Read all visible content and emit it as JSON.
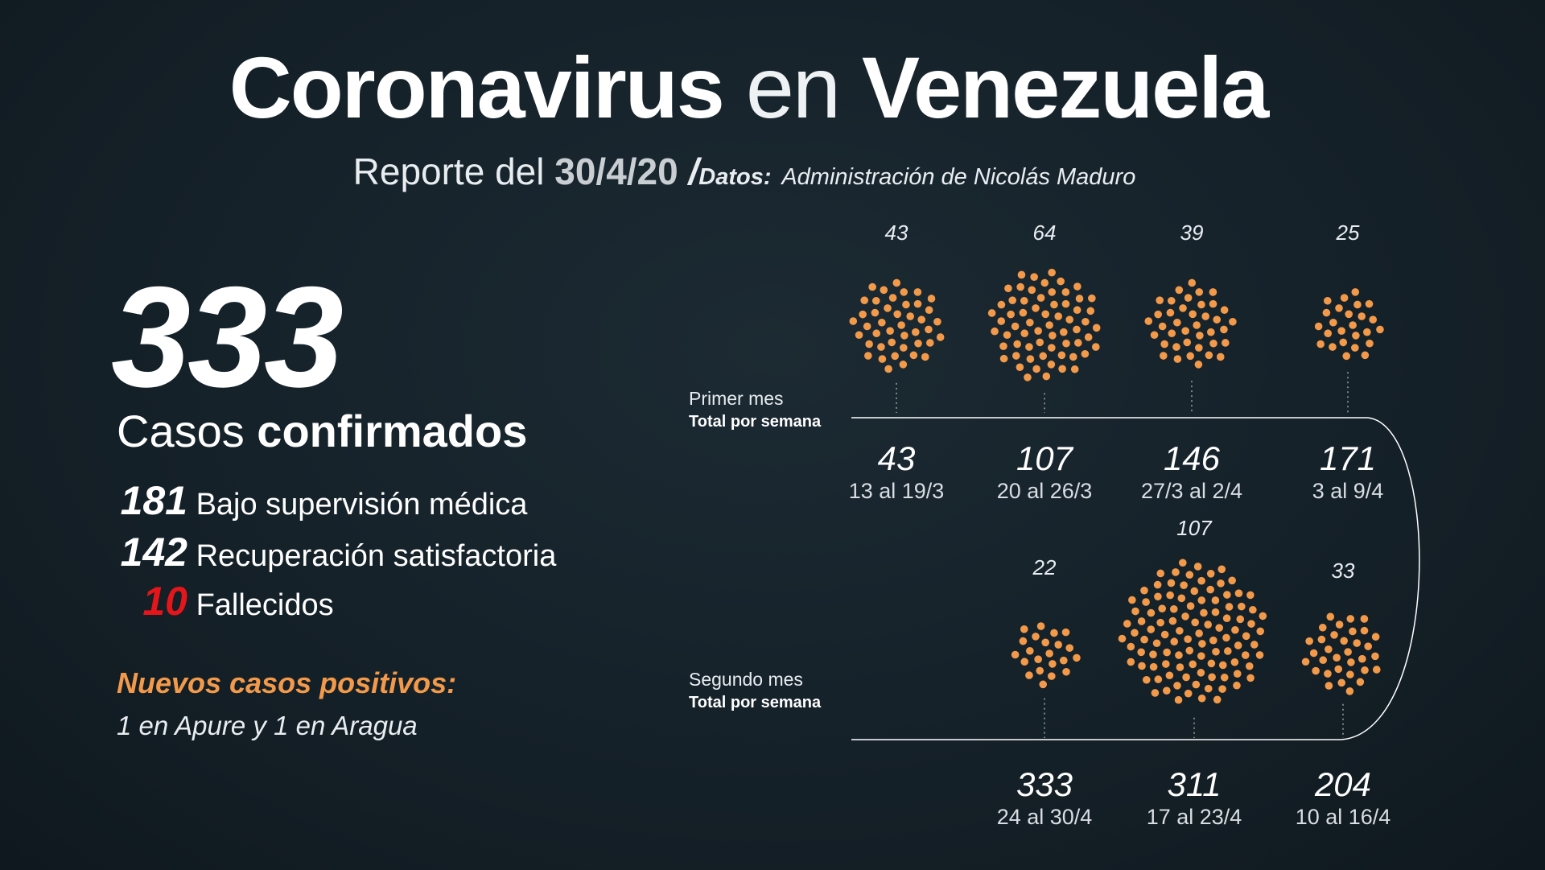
{
  "title": {
    "part1": "Coronavirus",
    "part2": "en",
    "part3": "Venezuela"
  },
  "subtitle": {
    "prefix": "Reporte del",
    "date": "30/4/20",
    "slash": "/",
    "source_label": "Datos:",
    "source": "Administración de Nicolás Maduro"
  },
  "summary": {
    "total": "333",
    "casos": "Casos",
    "confirmados": "confirmados",
    "stats": [
      {
        "value": "181",
        "label": "Bajo supervisión médica",
        "color": "#ffffff"
      },
      {
        "value": "142",
        "label": "Recuperación satisfactoria",
        "color": "#ffffff"
      },
      {
        "value": "10",
        "label": "Fallecidos",
        "color": "#e4161b"
      }
    ],
    "nuevos_title": "Nuevos casos positivos:",
    "nuevos_value": "1 en Apure y 1 en Aragua"
  },
  "colors": {
    "dot": "#f39a4a",
    "accent_red": "#e4161b",
    "accent_orange": "#f39a4a"
  },
  "months": [
    {
      "label": "Primer mes",
      "sublabel": "Total por semana",
      "weeks": [
        {
          "new_cases": "43",
          "cumulative": "43",
          "range": "13 al 19/3"
        },
        {
          "new_cases": "64",
          "cumulative": "107",
          "range": "20 al 26/3"
        },
        {
          "new_cases": "39",
          "cumulative": "146",
          "range": "27/3 al 2/4"
        },
        {
          "new_cases": "25",
          "cumulative": "171",
          "range": "3 al 9/4"
        }
      ]
    },
    {
      "label": "Segundo mes",
      "sublabel": "Total por semana",
      "weeks": [
        {
          "new_cases": "22",
          "cumulative": "333",
          "range": "24 al 30/4"
        },
        {
          "new_cases": "107",
          "cumulative": "311",
          "range": "17 al 23/4"
        },
        {
          "new_cases": "33",
          "cumulative": "204",
          "range": "10 al 16/4"
        }
      ]
    }
  ]
}
